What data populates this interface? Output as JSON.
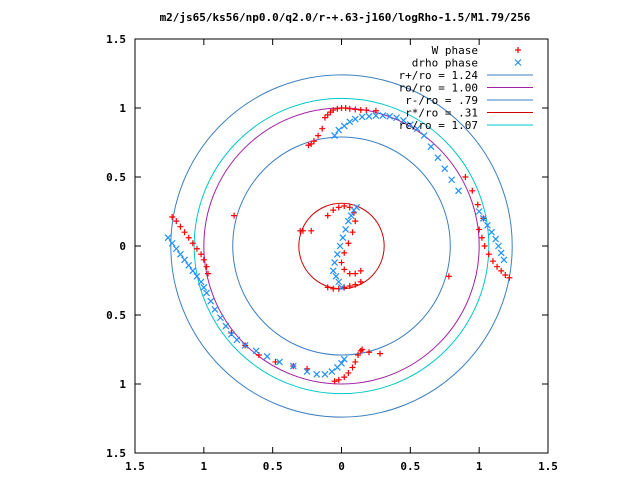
{
  "chart_data": {
    "type": "scatter",
    "title": "m2/js65/ks56/np0.0/q2.0/r-+.63-j160/logRho-1.5/M1.79/256",
    "xlabel": "",
    "ylabel": "",
    "xlim": [
      -1.5,
      1.5
    ],
    "ylim": [
      -1.5,
      1.5
    ],
    "grid": false,
    "legend_position": "top-right",
    "x_tick_labels": [
      "1.5",
      "1",
      "0.5",
      "0",
      "0.5",
      "1",
      "1.5"
    ],
    "y_tick_labels": [
      "1.5",
      "1",
      "0.5",
      "0",
      "0.5",
      "1",
      "1.5"
    ],
    "tick_values": [
      -1.5,
      -1,
      -0.5,
      0,
      0.5,
      1,
      1.5
    ],
    "series": [
      {
        "name": "W phase",
        "marker": "plus",
        "color": "#ff0000",
        "points": [
          [
            -0.12,
            0.93
          ],
          [
            -0.1,
            0.95
          ],
          [
            -0.08,
            0.97
          ],
          [
            -0.06,
            0.985
          ],
          [
            -0.03,
            0.995
          ],
          [
            0.0,
            1.0
          ],
          [
            0.03,
            1.0
          ],
          [
            0.06,
            0.995
          ],
          [
            0.1,
            0.99
          ],
          [
            0.14,
            0.985
          ],
          [
            0.18,
            0.985
          ],
          [
            0.25,
            0.98
          ],
          [
            -0.14,
            0.85
          ],
          [
            -0.17,
            0.8
          ],
          [
            -0.2,
            0.76
          ],
          [
            -0.22,
            0.74
          ],
          [
            -0.24,
            0.73
          ],
          [
            -1.23,
            0.21
          ],
          [
            -1.2,
            0.18
          ],
          [
            -1.17,
            0.14
          ],
          [
            -1.14,
            0.1
          ],
          [
            -1.11,
            0.06
          ],
          [
            -1.08,
            0.02
          ],
          [
            -1.05,
            -0.02
          ],
          [
            -1.02,
            -0.06
          ],
          [
            -1.0,
            -0.1
          ],
          [
            -0.98,
            -0.15
          ],
          [
            -0.97,
            -0.2
          ],
          [
            -0.78,
            0.22
          ],
          [
            -0.28,
            0.11
          ],
          [
            -0.8,
            -0.63
          ],
          [
            -0.7,
            -0.72
          ],
          [
            -0.6,
            -0.79
          ],
          [
            -0.48,
            -0.84
          ],
          [
            -0.35,
            -0.87
          ],
          [
            -0.25,
            -0.89
          ],
          [
            -0.05,
            -0.98
          ],
          [
            -0.02,
            -0.97
          ],
          [
            0.02,
            -0.95
          ],
          [
            0.05,
            -0.92
          ],
          [
            0.08,
            -0.88
          ],
          [
            0.1,
            -0.84
          ],
          [
            0.12,
            -0.79
          ],
          [
            0.14,
            -0.76
          ],
          [
            0.15,
            -0.75
          ],
          [
            0.2,
            -0.77
          ],
          [
            0.28,
            -0.78
          ],
          [
            0.78,
            -0.22
          ],
          [
            1.0,
            0.12
          ],
          [
            1.02,
            0.06
          ],
          [
            1.04,
            0.0
          ],
          [
            1.07,
            -0.06
          ],
          [
            1.1,
            -0.11
          ],
          [
            1.13,
            -0.15
          ],
          [
            1.16,
            -0.18
          ],
          [
            1.19,
            -0.21
          ],
          [
            1.22,
            -0.23
          ],
          [
            0.9,
            0.5
          ],
          [
            0.95,
            0.4
          ],
          [
            0.99,
            0.3
          ],
          [
            1.03,
            0.2
          ],
          [
            -0.1,
            0.22
          ],
          [
            -0.06,
            0.26
          ],
          [
            -0.02,
            0.28
          ],
          [
            0.02,
            0.29
          ],
          [
            0.06,
            0.28
          ],
          [
            0.09,
            0.24
          ],
          [
            0.1,
            0.18
          ],
          [
            0.08,
            0.1
          ],
          [
            0.05,
            0.02
          ],
          [
            0.02,
            -0.05
          ],
          [
            0.0,
            -0.12
          ],
          [
            0.02,
            -0.17
          ],
          [
            0.06,
            -0.2
          ],
          [
            0.1,
            -0.2
          ],
          [
            0.14,
            -0.18
          ],
          [
            -0.1,
            -0.3
          ],
          [
            -0.06,
            -0.31
          ],
          [
            -0.02,
            -0.31
          ],
          [
            0.02,
            -0.3
          ],
          [
            0.06,
            -0.29
          ],
          [
            0.1,
            -0.28
          ],
          [
            0.14,
            -0.26
          ],
          [
            -0.22,
            0.11
          ],
          [
            -0.3,
            0.11
          ]
        ]
      },
      {
        "name": "drho phase",
        "marker": "x",
        "color": "#1e90ff",
        "points": [
          [
            -0.05,
            0.8
          ],
          [
            -0.02,
            0.84
          ],
          [
            0.02,
            0.87
          ],
          [
            0.06,
            0.9
          ],
          [
            0.1,
            0.92
          ],
          [
            0.15,
            0.935
          ],
          [
            0.2,
            0.94
          ],
          [
            0.25,
            0.945
          ],
          [
            0.3,
            0.945
          ],
          [
            0.35,
            0.94
          ],
          [
            0.4,
            0.93
          ],
          [
            0.45,
            0.91
          ],
          [
            0.5,
            0.88
          ],
          [
            0.55,
            0.85
          ],
          [
            0.6,
            0.8
          ],
          [
            0.65,
            0.72
          ],
          [
            0.7,
            0.64
          ],
          [
            0.75,
            0.56
          ],
          [
            0.8,
            0.48
          ],
          [
            0.85,
            0.4
          ],
          [
            1.0,
            0.25
          ],
          [
            1.03,
            0.2
          ],
          [
            1.06,
            0.15
          ],
          [
            1.09,
            0.1
          ],
          [
            1.12,
            0.05
          ],
          [
            1.14,
            0.0
          ],
          [
            1.16,
            -0.05
          ],
          [
            1.18,
            -0.1
          ],
          [
            -1.26,
            0.06
          ],
          [
            -1.23,
            0.02
          ],
          [
            -1.2,
            -0.02
          ],
          [
            -1.17,
            -0.06
          ],
          [
            -1.14,
            -0.1
          ],
          [
            -1.11,
            -0.14
          ],
          [
            -1.08,
            -0.18
          ],
          [
            -1.05,
            -0.22
          ],
          [
            -1.02,
            -0.26
          ],
          [
            -1.0,
            -0.3
          ],
          [
            -0.98,
            -0.34
          ],
          [
            -0.95,
            -0.4
          ],
          [
            -0.92,
            -0.46
          ],
          [
            -0.88,
            -0.52
          ],
          [
            -0.84,
            -0.58
          ],
          [
            -0.8,
            -0.64
          ],
          [
            -0.76,
            -0.68
          ],
          [
            -0.7,
            -0.72
          ],
          [
            -0.62,
            -0.76
          ],
          [
            -0.54,
            -0.8
          ],
          [
            -0.45,
            -0.84
          ],
          [
            -0.35,
            -0.87
          ],
          [
            -0.25,
            -0.91
          ],
          [
            -0.18,
            -0.93
          ],
          [
            -0.12,
            -0.93
          ],
          [
            -0.07,
            -0.91
          ],
          [
            -0.03,
            -0.88
          ],
          [
            0.0,
            -0.85
          ],
          [
            0.02,
            -0.82
          ],
          [
            0.0,
            -0.3
          ],
          [
            -0.02,
            -0.26
          ],
          [
            -0.04,
            -0.22
          ],
          [
            -0.06,
            -0.18
          ],
          [
            -0.05,
            -0.12
          ],
          [
            -0.03,
            -0.06
          ],
          [
            -0.01,
            0.0
          ],
          [
            0.01,
            0.06
          ],
          [
            0.03,
            0.12
          ],
          [
            0.05,
            0.18
          ],
          [
            0.07,
            0.22
          ],
          [
            0.09,
            0.26
          ],
          [
            0.11,
            0.28
          ]
        ]
      },
      {
        "name": "r+/ro = 1.24",
        "type": "circle",
        "radius": 1.24,
        "color": "#3d7fbf"
      },
      {
        "name": "ro/ro = 1.00",
        "type": "circle",
        "radius": 1.0,
        "color": "#a020a0"
      },
      {
        "name": "r-/ro = .79",
        "type": "circle",
        "radius": 0.79,
        "color": "#3d7fbf"
      },
      {
        "name": "r*/ro = .31",
        "type": "circle",
        "radius": 0.31,
        "color": "#cc0000"
      },
      {
        "name": "rc/ro = 1.07",
        "type": "circle",
        "radius": 1.07,
        "color": "#00c8c8"
      }
    ]
  }
}
